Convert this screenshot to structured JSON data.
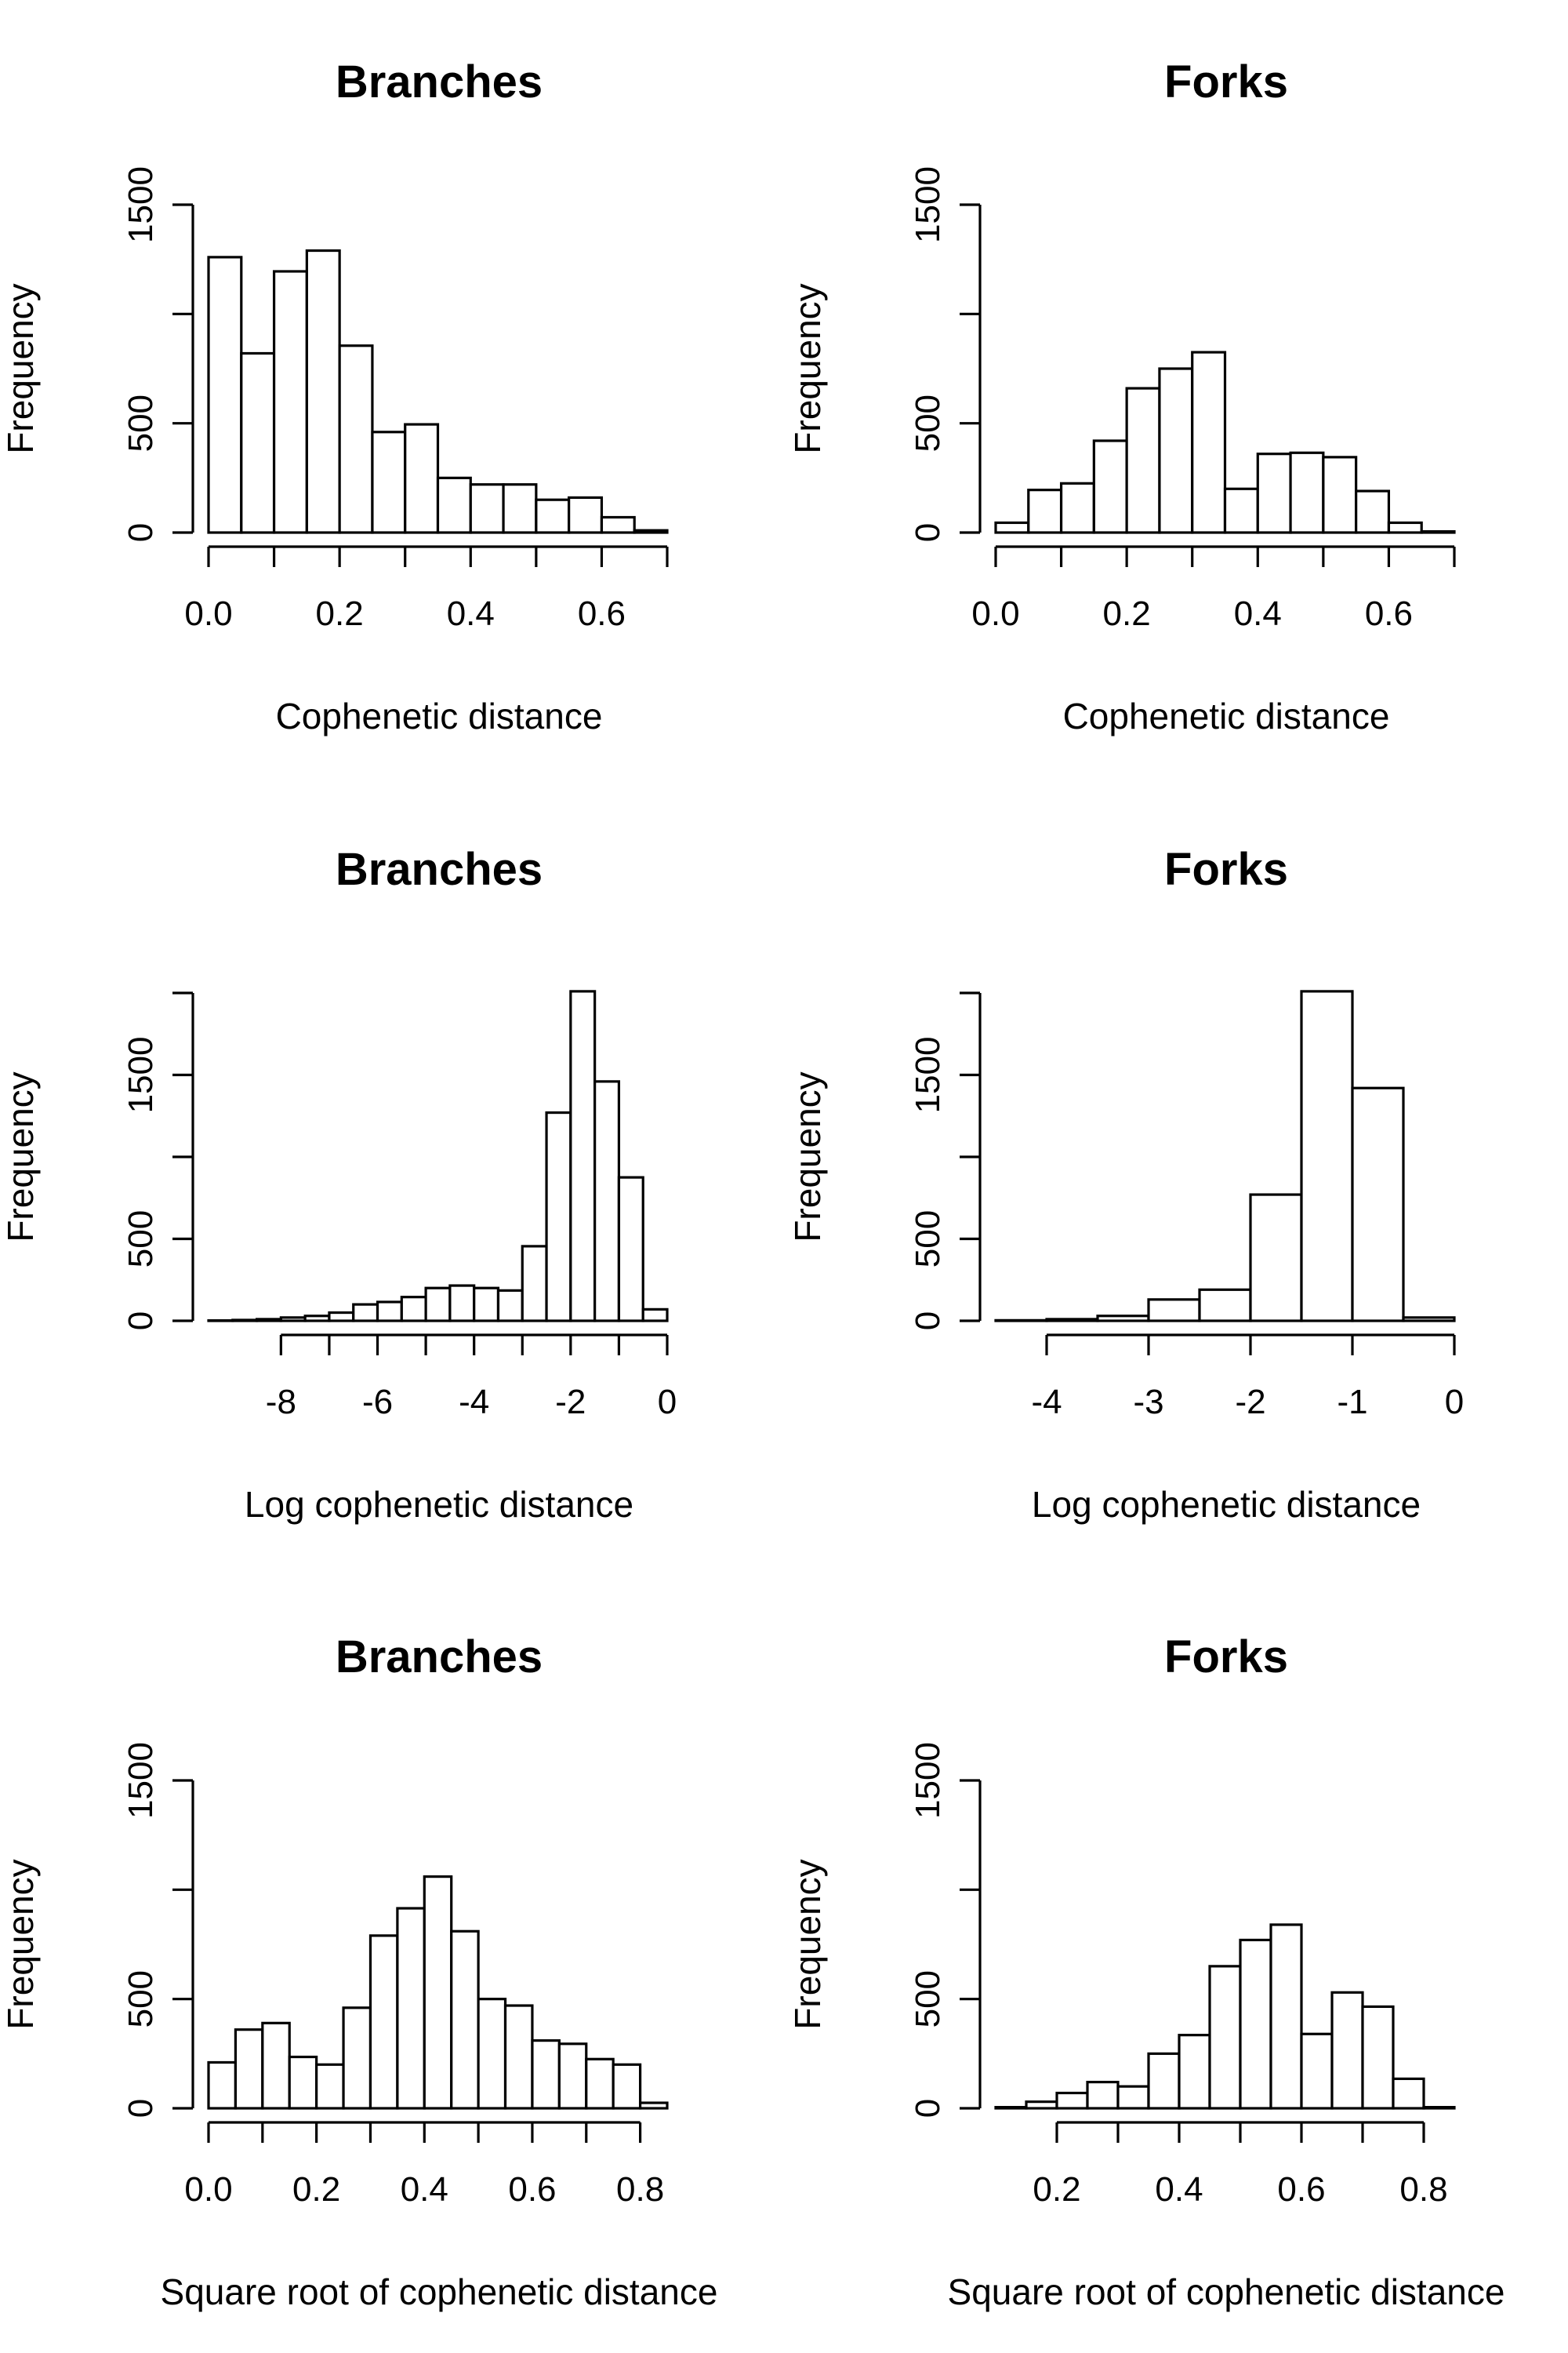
{
  "chart_data": [
    {
      "type": "bar",
      "title": "Branches",
      "xlabel": "Cophenetic distance",
      "ylabel": "Frequency",
      "bin_edges": [
        0.0,
        0.05,
        0.1,
        0.15,
        0.2,
        0.25,
        0.3,
        0.35,
        0.4,
        0.45,
        0.5,
        0.55,
        0.6,
        0.65,
        0.7
      ],
      "values": [
        1260,
        820,
        1195,
        1290,
        855,
        460,
        495,
        250,
        220,
        220,
        150,
        160,
        70,
        10
      ],
      "xlim": [
        0.0,
        0.7
      ],
      "ylim": [
        0,
        1500
      ],
      "x_ticks": [
        0.0,
        0.1,
        0.2,
        0.3,
        0.4,
        0.5,
        0.6,
        0.7
      ],
      "x_tick_labels": [
        "0.0",
        "",
        "0.2",
        "",
        "0.4",
        "",
        "0.6",
        ""
      ],
      "y_ticks": [
        0,
        500,
        1000,
        1500
      ],
      "y_tick_labels": [
        "0",
        "500",
        "",
        "1500"
      ]
    },
    {
      "type": "bar",
      "title": "Forks",
      "xlabel": "Cophenetic distance",
      "ylabel": "Frequency",
      "bin_edges": [
        0.0,
        0.05,
        0.1,
        0.15,
        0.2,
        0.25,
        0.3,
        0.35,
        0.4,
        0.45,
        0.5,
        0.55,
        0.6,
        0.65,
        0.7
      ],
      "values": [
        45,
        195,
        225,
        420,
        660,
        750,
        825,
        200,
        360,
        365,
        345,
        190,
        45,
        5
      ],
      "xlim": [
        0.0,
        0.7
      ],
      "ylim": [
        0,
        1500
      ],
      "x_ticks": [
        0.0,
        0.1,
        0.2,
        0.3,
        0.4,
        0.5,
        0.6,
        0.7
      ],
      "x_tick_labels": [
        "0.0",
        "",
        "0.2",
        "",
        "0.4",
        "",
        "0.6",
        ""
      ],
      "y_ticks": [
        0,
        500,
        1000,
        1500
      ],
      "y_tick_labels": [
        "0",
        "500",
        "",
        "1500"
      ]
    },
    {
      "type": "bar",
      "title": "Branches",
      "xlabel": "Log cophenetic distance",
      "ylabel": "Frequency",
      "bin_edges": [
        -9.5,
        -9,
        -8.5,
        -8,
        -7.5,
        -7,
        -6.5,
        -6,
        -5.5,
        -5,
        -4.5,
        -4,
        -3.5,
        -3,
        -2.5,
        -2,
        -1.5,
        -1,
        -0.5,
        0
      ],
      "values": [
        2,
        5,
        10,
        20,
        30,
        50,
        100,
        115,
        145,
        200,
        215,
        200,
        185,
        455,
        1270,
        2010,
        1460,
        875,
        70
      ],
      "xlim": [
        -9.5,
        0
      ],
      "ylim": [
        0,
        2000
      ],
      "x_ticks": [
        -8,
        -7,
        -6,
        -5,
        -4,
        -3,
        -2,
        -1,
        0
      ],
      "x_tick_labels": [
        "-8",
        "",
        "-6",
        "",
        "-4",
        "",
        "-2",
        "",
        "0"
      ],
      "y_ticks": [
        0,
        500,
        1000,
        1500,
        2000
      ],
      "y_tick_labels": [
        "0",
        "500",
        "",
        "1500",
        ""
      ]
    },
    {
      "type": "bar",
      "title": "Forks",
      "xlabel": "Log cophenetic distance",
      "ylabel": "Frequency",
      "bin_edges": [
        -4.5,
        -4,
        -3.5,
        -3,
        -2.5,
        -2,
        -1.5,
        -1,
        -0.5,
        0
      ],
      "values": [
        3,
        10,
        30,
        130,
        190,
        770,
        2010,
        1420,
        20
      ],
      "xlim": [
        -4.5,
        0
      ],
      "ylim": [
        0,
        2000
      ],
      "x_ticks": [
        -4,
        -3,
        -2,
        -1,
        0
      ],
      "x_tick_labels": [
        "-4",
        "-3",
        "-2",
        "-1",
        "0"
      ],
      "y_ticks": [
        0,
        500,
        1000,
        1500,
        2000
      ],
      "y_tick_labels": [
        "0",
        "500",
        "",
        "1500",
        ""
      ]
    },
    {
      "type": "bar",
      "title": "Branches",
      "xlabel": "Square root of cophenetic distance",
      "ylabel": "Frequency",
      "bin_edges": [
        0.0,
        0.05,
        0.1,
        0.15,
        0.2,
        0.25,
        0.3,
        0.35,
        0.4,
        0.45,
        0.5,
        0.55,
        0.6,
        0.65,
        0.7,
        0.75,
        0.8,
        0.85
      ],
      "values": [
        210,
        360,
        390,
        235,
        200,
        460,
        790,
        915,
        1060,
        810,
        500,
        470,
        310,
        295,
        225,
        200,
        25
      ],
      "xlim": [
        0.0,
        0.85
      ],
      "ylim": [
        0,
        1500
      ],
      "x_ticks": [
        0.0,
        0.1,
        0.2,
        0.3,
        0.4,
        0.5,
        0.6,
        0.7,
        0.8
      ],
      "x_tick_labels": [
        "0.0",
        "",
        "0.2",
        "",
        "0.4",
        "",
        "0.6",
        "",
        "0.8"
      ],
      "y_ticks": [
        0,
        500,
        1000,
        1500
      ],
      "y_tick_labels": [
        "0",
        "500",
        "",
        "1500"
      ]
    },
    {
      "type": "bar",
      "title": "Forks",
      "xlabel": "Square root of cophenetic distance",
      "ylabel": "Frequency",
      "bin_edges": [
        0.1,
        0.15,
        0.2,
        0.25,
        0.3,
        0.35,
        0.4,
        0.45,
        0.5,
        0.55,
        0.6,
        0.65,
        0.7,
        0.75,
        0.8,
        0.85
      ],
      "values": [
        5,
        30,
        70,
        120,
        100,
        250,
        335,
        650,
        770,
        840,
        340,
        530,
        465,
        135,
        5
      ],
      "xlim": [
        0.1,
        0.85
      ],
      "ylim": [
        0,
        1500
      ],
      "x_ticks": [
        0.2,
        0.3,
        0.4,
        0.5,
        0.6,
        0.7,
        0.8
      ],
      "x_tick_labels": [
        "0.2",
        "",
        "0.4",
        "",
        "0.6",
        "",
        "0.8"
      ],
      "y_ticks": [
        0,
        500,
        1000,
        1500
      ],
      "y_tick_labels": [
        "0",
        "500",
        "",
        "1500"
      ]
    }
  ]
}
